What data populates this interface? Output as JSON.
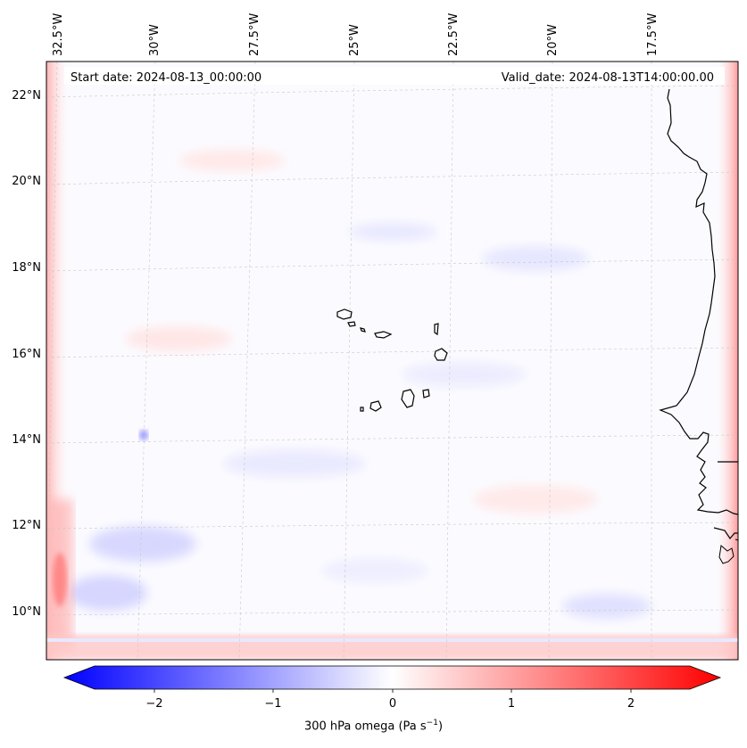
{
  "header": {
    "start_date": "Start date: 2024-08-13_00:00:00",
    "valid_date": "Valid_date: 2024-08-13T14:00:00.00"
  },
  "map": {
    "longitude_labels": [
      "32.5°W",
      "30°W",
      "27.5°W",
      "25°W",
      "22.5°W",
      "20°W",
      "17.5°W"
    ],
    "latitude_labels": [
      "22°N",
      "20°N",
      "18°N",
      "16°N",
      "14°N",
      "12°N",
      "10°N"
    ],
    "features": [
      "Cape Verde islands",
      "West African coastline"
    ]
  },
  "colorbar": {
    "tick_labels": [
      "−2",
      "−1",
      "0",
      "1",
      "2"
    ],
    "label_main": "300 hPa omega (Pa s",
    "label_exp": "−1",
    "label_close": ")",
    "range": [
      -2.5,
      2.5
    ],
    "colors": {
      "low": "#0000ff",
      "mid": "#ffffff",
      "high": "#ff0000"
    }
  }
}
